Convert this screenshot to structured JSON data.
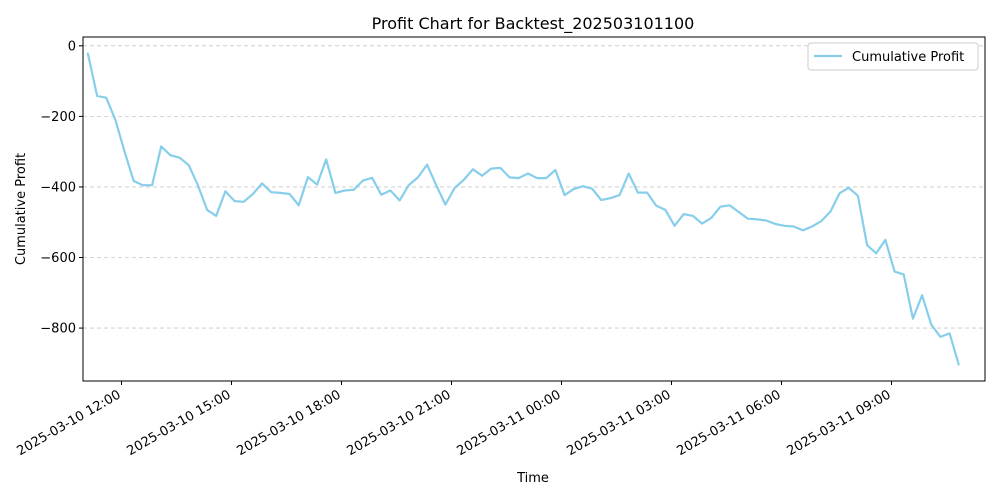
{
  "chart_data": {
    "type": "line",
    "title": "Profit Chart for Backtest_202503101100",
    "xlabel": "Time",
    "ylabel": "Cumulative Profit",
    "ylim": [
      -950,
      25
    ],
    "xlim": [
      "2025-03-10 10:57",
      "2025-03-11 11:33"
    ],
    "grid": "horizontal-dashed",
    "legend_position": "top-right",
    "line_color": "#87CEEB",
    "x_ticks": [
      "2025-03-10 12:00",
      "2025-03-10 15:00",
      "2025-03-10 18:00",
      "2025-03-10 21:00",
      "2025-03-11 00:00",
      "2025-03-11 03:00",
      "2025-03-11 06:00",
      "2025-03-11 09:00"
    ],
    "y_ticks": [
      0,
      -200,
      -400,
      -600,
      -800
    ],
    "series": [
      {
        "name": "Cumulative Profit",
        "x": [
          "2025-03-10 11:05",
          "2025-03-10 11:20",
          "2025-03-10 11:35",
          "2025-03-10 11:50",
          "2025-03-10 12:05",
          "2025-03-10 12:20",
          "2025-03-10 12:35",
          "2025-03-10 12:50",
          "2025-03-10 13:05",
          "2025-03-10 13:20",
          "2025-03-10 13:35",
          "2025-03-10 13:50",
          "2025-03-10 14:05",
          "2025-03-10 14:20",
          "2025-03-10 14:35",
          "2025-03-10 14:50",
          "2025-03-10 15:05",
          "2025-03-10 15:20",
          "2025-03-10 15:35",
          "2025-03-10 15:50",
          "2025-03-10 16:05",
          "2025-03-10 16:20",
          "2025-03-10 16:35",
          "2025-03-10 16:50",
          "2025-03-10 17:05",
          "2025-03-10 17:20",
          "2025-03-10 17:35",
          "2025-03-10 17:50",
          "2025-03-10 18:05",
          "2025-03-10 18:20",
          "2025-03-10 18:35",
          "2025-03-10 18:50",
          "2025-03-10 19:05",
          "2025-03-10 19:20",
          "2025-03-10 19:35",
          "2025-03-10 19:50",
          "2025-03-10 20:05",
          "2025-03-10 20:20",
          "2025-03-10 20:35",
          "2025-03-10 20:50",
          "2025-03-10 21:05",
          "2025-03-10 21:20",
          "2025-03-10 21:35",
          "2025-03-10 21:50",
          "2025-03-10 22:05",
          "2025-03-10 22:20",
          "2025-03-10 22:35",
          "2025-03-10 22:50",
          "2025-03-10 23:05",
          "2025-03-10 23:20",
          "2025-03-10 23:35",
          "2025-03-10 23:50",
          "2025-03-11 00:05",
          "2025-03-11 00:20",
          "2025-03-11 00:35",
          "2025-03-11 00:50",
          "2025-03-11 01:05",
          "2025-03-11 01:20",
          "2025-03-11 01:35",
          "2025-03-11 01:50",
          "2025-03-11 02:05",
          "2025-03-11 02:20",
          "2025-03-11 02:35",
          "2025-03-11 02:50",
          "2025-03-11 03:05",
          "2025-03-11 03:20",
          "2025-03-11 03:35",
          "2025-03-11 03:50",
          "2025-03-11 04:05",
          "2025-03-11 04:20",
          "2025-03-11 04:35",
          "2025-03-11 04:50",
          "2025-03-11 05:05",
          "2025-03-11 05:20",
          "2025-03-11 05:35",
          "2025-03-11 05:50",
          "2025-03-11 06:05",
          "2025-03-11 06:20",
          "2025-03-11 06:35",
          "2025-03-11 06:50",
          "2025-03-11 07:05",
          "2025-03-11 07:20",
          "2025-03-11 07:35",
          "2025-03-11 07:50",
          "2025-03-11 08:05",
          "2025-03-11 08:20",
          "2025-03-11 08:35",
          "2025-03-11 08:50",
          "2025-03-11 09:05",
          "2025-03-11 09:20",
          "2025-03-11 09:35",
          "2025-03-11 09:50",
          "2025-03-11 10:05",
          "2025-03-11 10:20",
          "2025-03-11 10:35",
          "2025-03-11 10:50"
        ],
        "y": [
          -22,
          -142,
          -147,
          -210,
          -300,
          -383,
          -395,
          -395,
          -285,
          -310,
          -317,
          -338,
          -395,
          -465,
          -482,
          -412,
          -440,
          -442,
          -420,
          -390,
          -415,
          -417,
          -420,
          -452,
          -372,
          -393,
          -322,
          -417,
          -410,
          -408,
          -382,
          -374,
          -422,
          -410,
          -438,
          -395,
          -373,
          -337,
          -395,
          -450,
          -403,
          -380,
          -350,
          -368,
          -348,
          -346,
          -373,
          -375,
          -362,
          -375,
          -375,
          -352,
          -423,
          -406,
          -398,
          -405,
          -437,
          -432,
          -423,
          -362,
          -416,
          -416,
          -453,
          -465,
          -510,
          -477,
          -482,
          -504,
          -488,
          -456,
          -452,
          -471,
          -490,
          -492,
          -495,
          -505,
          -510,
          -512,
          -523,
          -512,
          -497,
          -470,
          -418,
          -402,
          -425,
          -565,
          -588,
          -550,
          -640,
          -648,
          -773,
          -707,
          -790,
          -825,
          -815,
          -903
        ]
      }
    ]
  }
}
